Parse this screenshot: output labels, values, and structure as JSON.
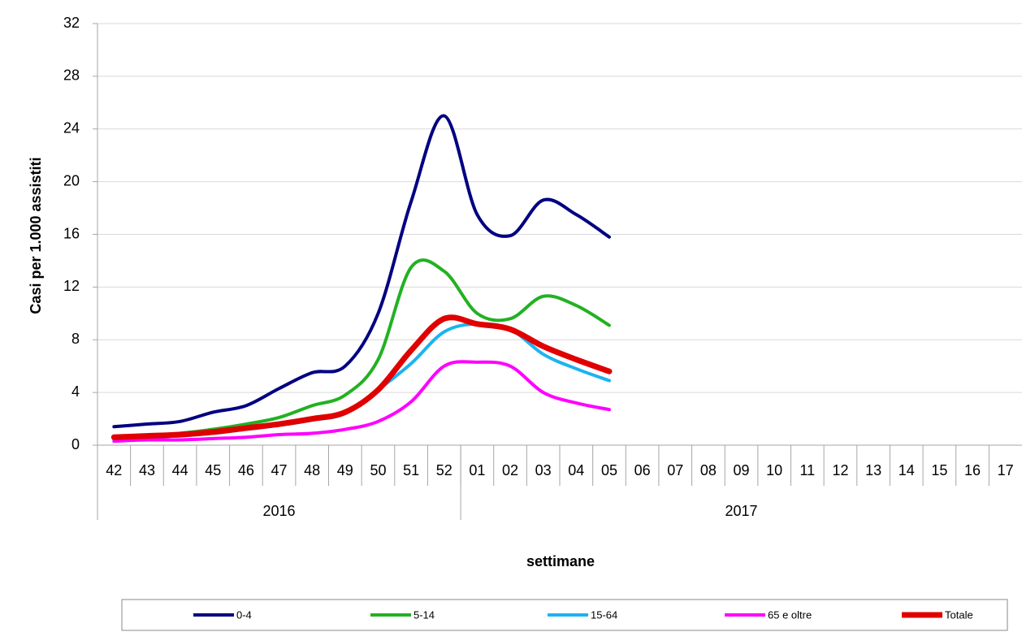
{
  "chart_data": {
    "type": "line",
    "y_label": "Casi per 1.000 assistiti",
    "x_label": "settimane",
    "categories": [
      "42",
      "43",
      "44",
      "45",
      "46",
      "47",
      "48",
      "49",
      "50",
      "51",
      "52",
      "01",
      "02",
      "03",
      "04",
      "05",
      "06",
      "07",
      "08",
      "09",
      "10",
      "11",
      "12",
      "13",
      "14",
      "15",
      "16",
      "17"
    ],
    "x_groups": [
      {
        "label": "2016",
        "count": 11
      },
      {
        "label": "2017",
        "count": 17
      }
    ],
    "ylim": [
      0,
      32
    ],
    "yticks": [
      0,
      4,
      8,
      12,
      16,
      20,
      24,
      28,
      32
    ],
    "grid": true,
    "legend": "bottom",
    "series": [
      {
        "name": "0-4",
        "color": "#000080",
        "values": [
          1.4,
          1.6,
          1.8,
          2.5,
          3.0,
          4.3,
          5.5,
          6.0,
          10.0,
          18.5,
          25.0,
          17.5,
          15.9,
          18.6,
          17.5,
          15.8,
          null,
          null,
          null,
          null,
          null,
          null,
          null,
          null,
          null,
          null,
          null,
          null
        ]
      },
      {
        "name": "5-14",
        "color": "#22b122",
        "values": [
          0.5,
          0.7,
          0.9,
          1.2,
          1.6,
          2.1,
          3.0,
          3.8,
          6.5,
          13.5,
          13.2,
          10.0,
          9.6,
          11.3,
          10.6,
          9.1,
          null,
          null,
          null,
          null,
          null,
          null,
          null,
          null,
          null,
          null,
          null,
          null
        ]
      },
      {
        "name": "15-64",
        "color": "#1cb4f0",
        "values": [
          0.4,
          0.6,
          0.7,
          0.9,
          1.2,
          1.5,
          1.9,
          2.4,
          4.2,
          6.2,
          8.6,
          9.2,
          8.8,
          6.9,
          5.8,
          4.9,
          null,
          null,
          null,
          null,
          null,
          null,
          null,
          null,
          null,
          null,
          null,
          null
        ]
      },
      {
        "name": "65 e oltre",
        "color": "#ff00ff",
        "values": [
          0.3,
          0.4,
          0.4,
          0.5,
          0.6,
          0.8,
          0.9,
          1.2,
          1.8,
          3.3,
          6.0,
          6.3,
          6.0,
          4.0,
          3.2,
          2.7,
          null,
          null,
          null,
          null,
          null,
          null,
          null,
          null,
          null,
          null,
          null,
          null
        ]
      },
      {
        "name": "Totale",
        "color": "#e00000",
        "values": [
          0.6,
          0.7,
          0.8,
          1.0,
          1.3,
          1.6,
          2.0,
          2.5,
          4.2,
          7.2,
          9.6,
          9.2,
          8.8,
          7.5,
          6.5,
          5.6,
          null,
          null,
          null,
          null,
          null,
          null,
          null,
          null,
          null,
          null,
          null,
          null
        ]
      }
    ]
  }
}
